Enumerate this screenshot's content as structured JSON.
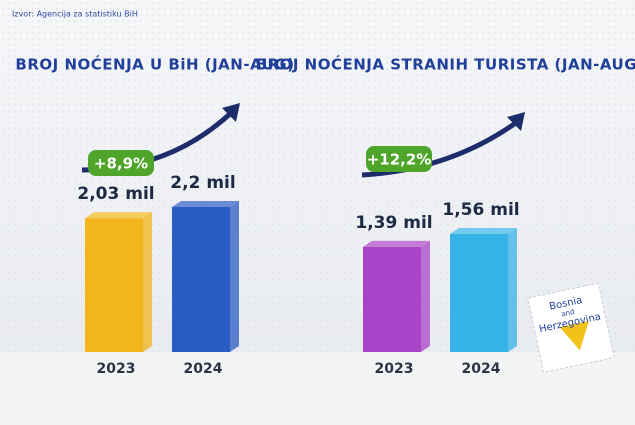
{
  "source": "Izvor: Agencija za statistiku BiH",
  "stamp": {
    "lines": [
      "Bosnia",
      "and",
      "Herzegovina"
    ]
  },
  "chart_data": [
    {
      "type": "bar",
      "title": "BROJ NOĆENJA U BiH (JAN-AUG)",
      "annotation": "+8,9%",
      "categories": [
        "2023",
        "2024"
      ],
      "values": [
        2.03,
        2.2
      ],
      "value_labels": [
        "2,03 mil",
        "2,2 mil"
      ],
      "colors": [
        "#f2b51c",
        "#2a5bc4"
      ]
    },
    {
      "type": "bar",
      "title": "BROJ NOĆENJA STRANIH TURISTA (JAN-AUG)",
      "annotation": "+12,2%",
      "categories": [
        "2023",
        "2024"
      ],
      "values": [
        1.39,
        1.56
      ],
      "value_labels": [
        "1,39 mil",
        "1,56 mil"
      ],
      "colors": [
        "#a944c8",
        "#35b3e6"
      ]
    }
  ]
}
